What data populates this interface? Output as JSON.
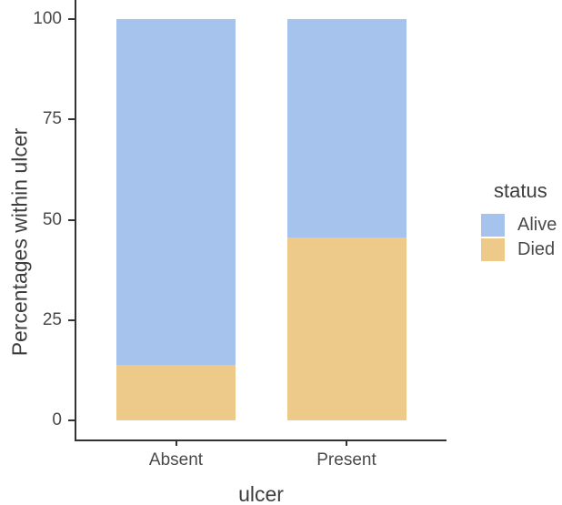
{
  "chart_data": {
    "type": "bar",
    "stacked": true,
    "orientation": "vertical",
    "title": "",
    "xlabel": "ulcer",
    "ylabel": "Percentages within ulcer",
    "categories": [
      "Absent",
      "Present"
    ],
    "series": [
      {
        "name": "Alive",
        "color": "#a6c3ee",
        "values": [
          86.1,
          54.4
        ]
      },
      {
        "name": "Died",
        "color": "#edca89",
        "values": [
          13.9,
          45.6
        ]
      }
    ],
    "ylim": [
      0,
      100
    ],
    "yticks": [
      0,
      25,
      50,
      75,
      100
    ],
    "grid": false,
    "legend_title": "status",
    "legend_position": "right",
    "axis_color": "#333333",
    "background_color": "#ffffff"
  }
}
